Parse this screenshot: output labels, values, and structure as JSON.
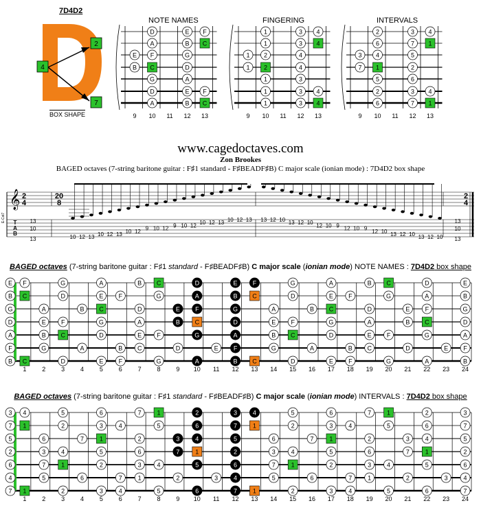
{
  "header": {
    "shape_code": "7D4D2",
    "big_letter": "D",
    "box_shape_label": "BOX SHAPE",
    "box_numbers": [
      "2",
      "4",
      "7"
    ],
    "colors": {
      "orange": "#f07f17",
      "green": "#2bc12b",
      "black": "#000000"
    }
  },
  "diagrams": {
    "note_names_title": "NOTE NAMES",
    "fingering_title": "FINGERING",
    "intervals_title": "INTERVALS",
    "frets": [
      "9",
      "10",
      "11",
      "12",
      "13"
    ],
    "note_names": [
      [
        "",
        "D",
        "",
        "E",
        "F"
      ],
      [
        "",
        "A",
        "",
        "B",
        "C"
      ],
      [
        "E",
        "F",
        "",
        "G",
        ""
      ],
      [
        "B",
        "C",
        "",
        "D",
        ""
      ],
      [
        "",
        "G",
        "",
        "A",
        ""
      ],
      [
        "",
        "D",
        "",
        "E",
        "F"
      ],
      [
        "",
        "A",
        "",
        "B",
        "C"
      ]
    ],
    "fingering": [
      [
        "",
        "1",
        "",
        "3",
        "4"
      ],
      [
        "",
        "1",
        "",
        "3",
        "4"
      ],
      [
        "1",
        "2",
        "",
        "4",
        ""
      ],
      [
        "1",
        "2",
        "",
        "4",
        ""
      ],
      [
        "",
        "1",
        "",
        "3",
        ""
      ],
      [
        "",
        "1",
        "",
        "3",
        "4"
      ],
      [
        "",
        "1",
        "",
        "3",
        "4"
      ]
    ],
    "intervals": [
      [
        "",
        "2",
        "",
        "3",
        "4"
      ],
      [
        "",
        "6",
        "",
        "7",
        "1"
      ],
      [
        "3",
        "4",
        "",
        "5",
        ""
      ],
      [
        "7",
        "1",
        "",
        "2",
        ""
      ],
      [
        "",
        "5",
        "",
        "6",
        ""
      ],
      [
        "",
        "2",
        "",
        "3",
        "4"
      ],
      [
        "",
        "6",
        "",
        "7",
        "1"
      ]
    ]
  },
  "score": {
    "website": "www.cagedoctaves.com",
    "composer": "Zon Brookes",
    "subtitle": "BAGED octaves (7-string baritone guitar : F♯1 standard - F♯BEADF♯B) C major scale (ionian mode) : 7D4D2 box shape",
    "time_sig_start": [
      "2",
      "4"
    ],
    "time_sig_mid": [
      "20",
      "8"
    ],
    "time_sig_end": [
      "2",
      "4"
    ],
    "chord": "E-Cst7",
    "tab_label": [
      "T",
      "A",
      "B"
    ],
    "tab_chord_left": [
      "13",
      "10",
      "13"
    ],
    "tab_chord_right": [
      "13",
      "10",
      "13"
    ],
    "tab_notes": [
      "10",
      "12",
      "13",
      "10",
      "12",
      "13",
      "10",
      "12",
      "9",
      "10",
      "12",
      "9",
      "10",
      "12",
      "10",
      "12",
      "13",
      "10",
      "12",
      "13",
      "13",
      "12",
      "10",
      "13",
      "12",
      "10",
      "12",
      "10",
      "9",
      "12",
      "10",
      "9",
      "12",
      "10",
      "13",
      "12",
      "10",
      "13",
      "12",
      "10"
    ]
  },
  "fretboard_names": {
    "title_parts": [
      "BAGED octaves",
      " (7-string baritone guitar : F♯1 ",
      "standard",
      " - F♯BEADF♯B) ",
      "C major scale",
      " (",
      "ionian mode",
      ") NOTE NAMES : ",
      "7D4D2",
      " box shape"
    ],
    "rows": [
      [
        "E",
        "F",
        "",
        "G",
        "",
        "A",
        "",
        "B",
        "C",
        "",
        "D",
        "",
        "E",
        "F",
        "",
        "G",
        "",
        "A",
        "",
        "B",
        "C",
        "",
        "D",
        "",
        "E"
      ],
      [
        "B",
        "C",
        "",
        "D",
        "",
        "E",
        "F",
        "",
        "G",
        "",
        "A",
        "",
        "B",
        "C",
        "",
        "D",
        "",
        "E",
        "F",
        "",
        "G",
        "",
        "A",
        "",
        "B"
      ],
      [
        "G",
        "",
        "A",
        "",
        "B",
        "C",
        "",
        "D",
        "",
        "E",
        "F",
        "",
        "G",
        "",
        "A",
        "",
        "B",
        "C",
        "",
        "D",
        "",
        "E",
        "F",
        "",
        "G"
      ],
      [
        "D",
        "",
        "E",
        "F",
        "",
        "G",
        "",
        "A",
        "",
        "B",
        "C",
        "",
        "D",
        "",
        "E",
        "F",
        "",
        "G",
        "",
        "A",
        "",
        "B",
        "C",
        "",
        "D"
      ],
      [
        "A",
        "",
        "B",
        "C",
        "",
        "D",
        "",
        "E",
        "F",
        "",
        "G",
        "",
        "A",
        "",
        "B",
        "C",
        "",
        "D",
        "",
        "E",
        "F",
        "",
        "G",
        "",
        "A"
      ],
      [
        "F",
        "",
        "G",
        "",
        "A",
        "",
        "B",
        "C",
        "",
        "D",
        "",
        "E",
        "F",
        "",
        "G",
        "",
        "A",
        "",
        "B",
        "C",
        "",
        "D",
        "",
        "E",
        "F"
      ],
      [
        "B",
        "C",
        "",
        "D",
        "",
        "E",
        "F",
        "",
        "G",
        "",
        "A",
        "",
        "B",
        "C",
        "",
        "D",
        "",
        "E",
        "F",
        "",
        "G",
        "",
        "A",
        "",
        "B"
      ]
    ]
  },
  "fretboard_intervals": {
    "title_parts": [
      "BAGED octaves",
      " (7-string baritone guitar : F♯1 ",
      "standard",
      " - F♯BEADF♯B) ",
      "C major scale",
      " (",
      "ionian mode",
      ") INTERVALS : ",
      "7D4D2",
      " box shape"
    ],
    "rows": [
      [
        "3",
        "4",
        "",
        "5",
        "",
        "6",
        "",
        "7",
        "1",
        "",
        "2",
        "",
        "3",
        "4",
        "",
        "5",
        "",
        "6",
        "",
        "7",
        "1",
        "",
        "2",
        "",
        "3"
      ],
      [
        "7",
        "1",
        "",
        "2",
        "",
        "3",
        "4",
        "",
        "5",
        "",
        "6",
        "",
        "7",
        "1",
        "",
        "2",
        "",
        "3",
        "4",
        "",
        "5",
        "",
        "6",
        "",
        "7"
      ],
      [
        "5",
        "",
        "6",
        "",
        "7",
        "1",
        "",
        "2",
        "",
        "3",
        "4",
        "",
        "5",
        "",
        "6",
        "",
        "7",
        "1",
        "",
        "2",
        "",
        "3",
        "4",
        "",
        "5"
      ],
      [
        "2",
        "",
        "3",
        "4",
        "",
        "5",
        "",
        "6",
        "",
        "7",
        "1",
        "",
        "2",
        "",
        "3",
        "4",
        "",
        "5",
        "",
        "6",
        "",
        "7",
        "1",
        "",
        "2"
      ],
      [
        "6",
        "",
        "7",
        "1",
        "",
        "2",
        "",
        "3",
        "4",
        "",
        "5",
        "",
        "6",
        "",
        "7",
        "1",
        "",
        "2",
        "",
        "3",
        "4",
        "",
        "5",
        "",
        "6"
      ],
      [
        "4",
        "",
        "5",
        "",
        "6",
        "",
        "7",
        "1",
        "",
        "2",
        "",
        "3",
        "4",
        "",
        "5",
        "",
        "6",
        "",
        "7",
        "1",
        "",
        "2",
        "",
        "3",
        "4"
      ],
      [
        "7",
        "1",
        "",
        "2",
        "",
        "3",
        "4",
        "",
        "5",
        "",
        "6",
        "",
        "7",
        "1",
        "",
        "2",
        "",
        "3",
        "4",
        "",
        "5",
        "",
        "6",
        "",
        "7"
      ]
    ],
    "fret_numbers": [
      "1",
      "2",
      "3",
      "4",
      "5",
      "6",
      "7",
      "8",
      "9",
      "10",
      "11",
      "12",
      "13",
      "14",
      "15",
      "16",
      "17",
      "18",
      "19",
      "20",
      "21",
      "22",
      "23",
      "24"
    ]
  }
}
